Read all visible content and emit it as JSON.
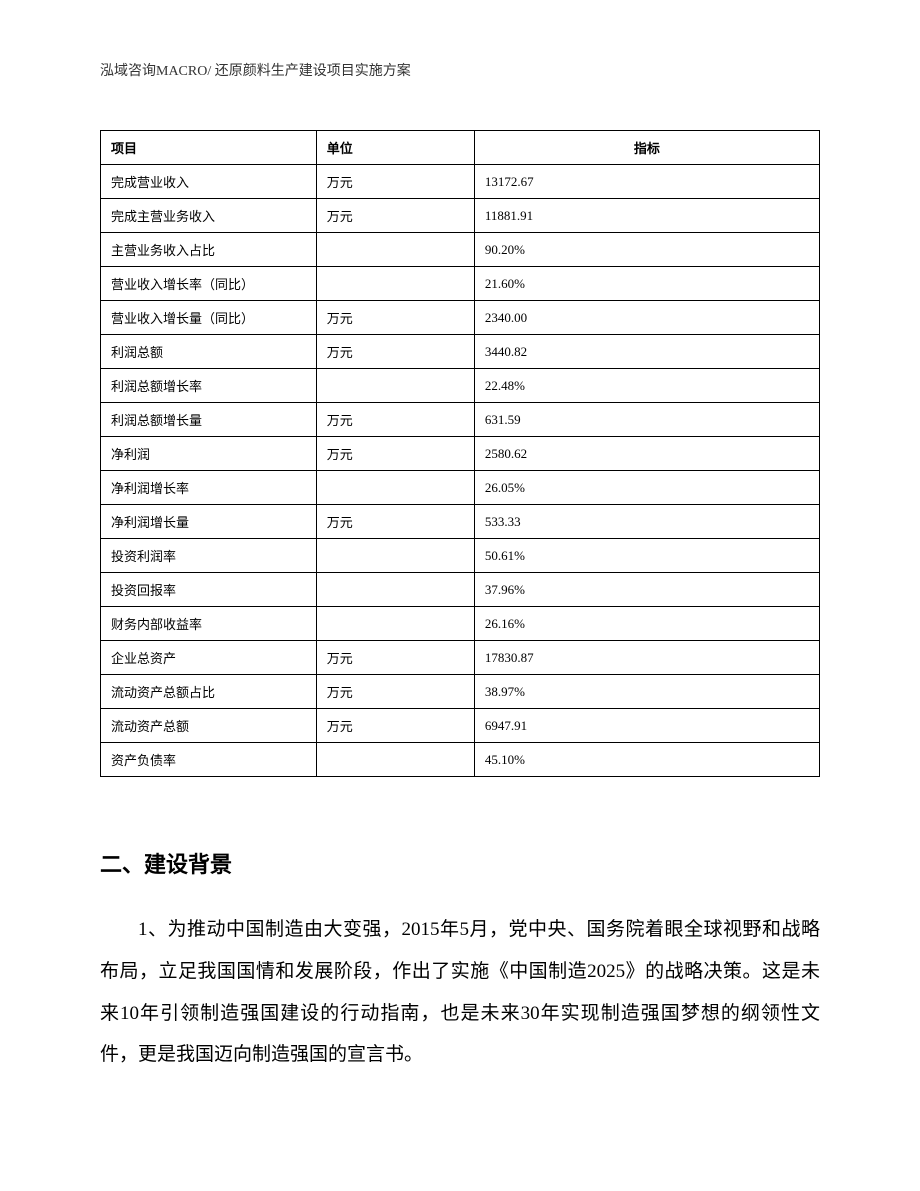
{
  "header": {
    "text": "泓域咨询MACRO/ 还原颜料生产建设项目实施方案"
  },
  "table": {
    "columns": [
      {
        "label": "项目",
        "class": "col-project"
      },
      {
        "label": "单位",
        "class": "col-unit"
      },
      {
        "label": "指标",
        "class": "col-indicator"
      }
    ],
    "rows": [
      {
        "project": "完成营业收入",
        "unit": "万元",
        "indicator": "13172.67"
      },
      {
        "project": "完成主营业务收入",
        "unit": "万元",
        "indicator": "11881.91"
      },
      {
        "project": "主营业务收入占比",
        "unit": "",
        "indicator": "90.20%"
      },
      {
        "project": "营业收入增长率（同比）",
        "unit": "",
        "indicator": "21.60%"
      },
      {
        "project": "营业收入增长量（同比）",
        "unit": "万元",
        "indicator": "2340.00"
      },
      {
        "project": "利润总额",
        "unit": "万元",
        "indicator": "3440.82"
      },
      {
        "project": "利润总额增长率",
        "unit": "",
        "indicator": "22.48%"
      },
      {
        "project": "利润总额增长量",
        "unit": "万元",
        "indicator": "631.59"
      },
      {
        "project": "净利润",
        "unit": "万元",
        "indicator": "2580.62"
      },
      {
        "project": "净利润增长率",
        "unit": "",
        "indicator": "26.05%"
      },
      {
        "project": "净利润增长量",
        "unit": "万元",
        "indicator": "533.33"
      },
      {
        "project": "投资利润率",
        "unit": "",
        "indicator": "50.61%"
      },
      {
        "project": "投资回报率",
        "unit": "",
        "indicator": "37.96%"
      },
      {
        "project": "财务内部收益率",
        "unit": "",
        "indicator": "26.16%"
      },
      {
        "project": "企业总资产",
        "unit": "万元",
        "indicator": "17830.87"
      },
      {
        "project": "流动资产总额占比",
        "unit": "万元",
        "indicator": "38.97%"
      },
      {
        "project": "流动资产总额",
        "unit": "万元",
        "indicator": "6947.91"
      },
      {
        "project": "资产负债率",
        "unit": "",
        "indicator": "45.10%"
      }
    ]
  },
  "section": {
    "heading": "二、建设背景",
    "paragraph1": "1、为推动中国制造由大变强，2015年5月，党中央、国务院着眼全球视野和战略布局，立足我国国情和发展阶段，作出了实施《中国制造2025》的战略决策。这是未来10年引领制造强国建设的行动指南，也是未来30年实现制造强国梦想的纲领性文件，更是我国迈向制造强国的宣言书。"
  }
}
